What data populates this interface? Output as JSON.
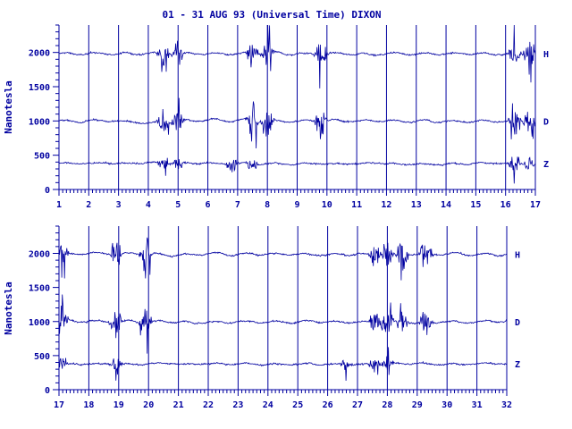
{
  "title": "01 - 31 AUG 93 (Universal Time) DIXON",
  "colors": {
    "ink": "#0000a0",
    "background": "#ffffff"
  },
  "chart_data": [
    {
      "type": "line",
      "panel": "top",
      "ylabel": "Nanotesla",
      "xlabel": "",
      "x_ticks": [
        "1",
        "2",
        "3",
        "4",
        "5",
        "6",
        "7",
        "8",
        "9",
        "10",
        "11",
        "12",
        "13",
        "14",
        "15",
        "16",
        "17"
      ],
      "xlim": [
        1,
        17
      ],
      "ylim": [
        0,
        2400
      ],
      "y_ticks": [
        0,
        500,
        1000,
        1500,
        2000
      ],
      "grid": "vertical lines at each day",
      "series": [
        {
          "name": "H",
          "baseline": 1980,
          "disturbed_days": [
            4.5,
            5.0,
            7.5,
            8.0,
            9.8,
            16.3,
            16.8
          ]
        },
        {
          "name": "D",
          "baseline": 1000,
          "disturbed_days": [
            4.5,
            5.0,
            7.5,
            8.0,
            9.8,
            16.3,
            16.8
          ]
        },
        {
          "name": "Z",
          "baseline": 380,
          "disturbed_days": [
            4.5,
            5.0,
            6.8,
            7.5,
            16.3,
            16.8
          ]
        }
      ]
    },
    {
      "type": "line",
      "panel": "bottom",
      "ylabel": "Nanotesla",
      "xlabel": "",
      "x_ticks": [
        "17",
        "18",
        "19",
        "20",
        "21",
        "22",
        "23",
        "24",
        "25",
        "26",
        "27",
        "28",
        "29",
        "30",
        "31",
        "32"
      ],
      "xlim": [
        17,
        32
      ],
      "ylim": [
        0,
        2400
      ],
      "y_ticks": [
        0,
        500,
        1000,
        1500,
        2000
      ],
      "grid": "vertical lines at each day",
      "series": [
        {
          "name": "H",
          "baseline": 1990,
          "disturbed_days": [
            17.1,
            18.9,
            19.9,
            27.6,
            28.0,
            28.5,
            29.3
          ]
        },
        {
          "name": "D",
          "baseline": 1000,
          "disturbed_days": [
            17.1,
            18.9,
            19.9,
            27.6,
            28.0,
            28.5,
            29.3
          ]
        },
        {
          "name": "Z",
          "baseline": 380,
          "disturbed_days": [
            17.1,
            18.9,
            26.6,
            27.6,
            28.0
          ]
        }
      ]
    }
  ]
}
